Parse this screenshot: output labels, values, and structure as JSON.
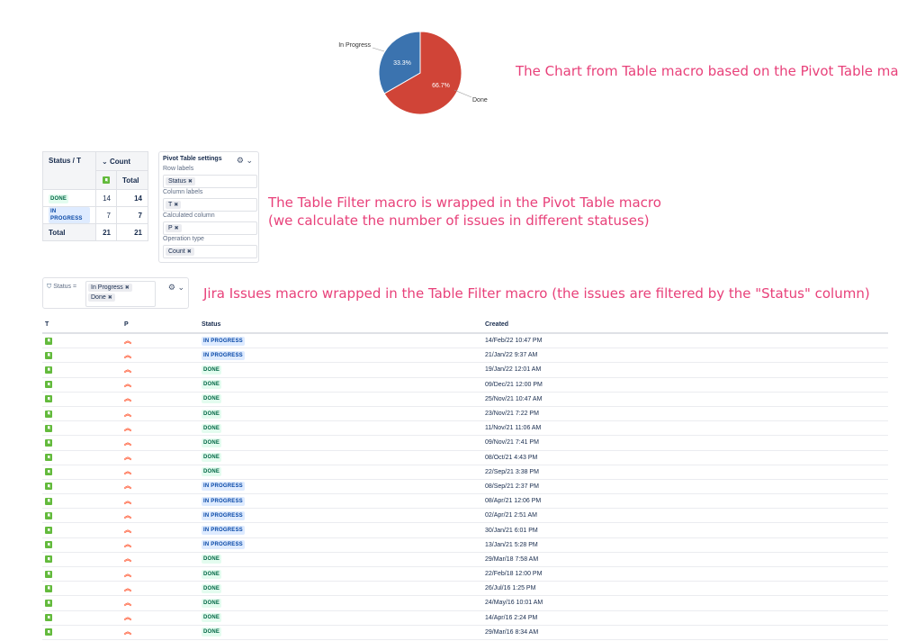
{
  "pie": {
    "chart_data": {
      "type": "pie",
      "slices": [
        {
          "label": "Done",
          "value": 66.7,
          "color": "#d04437"
        },
        {
          "label": "In Progress",
          "value": 33.3,
          "color": "#3b73af"
        }
      ]
    },
    "labels": {
      "in_progress": "In Progress",
      "done": "Done",
      "pct_in_progress": "33.3%",
      "pct_done": "66.7%"
    }
  },
  "annotations": {
    "chart": "The Chart from Table macro based on the Pivot Table macro",
    "pivot_line1": "The Table Filter macro is wrapped in the Pivot Table macro",
    "pivot_line2": "(we calculate the number of issues in different statuses)",
    "jira": "Jira Issues macro wrapped in the Table Filter macro (the issues are filtered by the \"Status\" column)"
  },
  "pivot": {
    "corner": "Status / T",
    "count_header": "Count",
    "total_col": "Total",
    "rows": [
      {
        "status": "DONE",
        "kind": "done",
        "v": "14",
        "total": "14"
      },
      {
        "status": "IN PROGRESS",
        "kind": "prog",
        "v": "7",
        "total": "7"
      }
    ],
    "total_row": {
      "label": "Total",
      "v": "21",
      "total": "21"
    }
  },
  "settings": {
    "title": "Pivot Table settings",
    "row_labels": "Row labels",
    "row_chip": "Status",
    "column_labels": "Column labels",
    "column_chip": "T",
    "calculated": "Calculated column",
    "calculated_chip": "P",
    "operation": "Operation type",
    "operation_chip": "Count",
    "remove_glyph": "✖"
  },
  "filter": {
    "label": "Status =",
    "chips": [
      "In Progress",
      "Done"
    ]
  },
  "issues": {
    "headers": {
      "t": "T",
      "p": "P",
      "status": "Status",
      "created": "Created"
    },
    "rows": [
      {
        "status": "IN PROGRESS",
        "created": "14/Feb/22 10:47 PM"
      },
      {
        "status": "IN PROGRESS",
        "created": "21/Jan/22 9:37 AM"
      },
      {
        "status": "DONE",
        "created": "19/Jan/22 12:01 AM"
      },
      {
        "status": "DONE",
        "created": "09/Dec/21 12:00 PM"
      },
      {
        "status": "DONE",
        "created": "25/Nov/21 10:47 AM"
      },
      {
        "status": "DONE",
        "created": "23/Nov/21 7:22 PM"
      },
      {
        "status": "DONE",
        "created": "11/Nov/21 11:06 AM"
      },
      {
        "status": "DONE",
        "created": "09/Nov/21 7:41 PM"
      },
      {
        "status": "DONE",
        "created": "08/Oct/21 4:43 PM"
      },
      {
        "status": "DONE",
        "created": "22/Sep/21 3:38 PM"
      },
      {
        "status": "IN PROGRESS",
        "created": "08/Sep/21 2:37 PM"
      },
      {
        "status": "IN PROGRESS",
        "created": "08/Apr/21 12:06 PM"
      },
      {
        "status": "IN PROGRESS",
        "created": "02/Apr/21 2:51 AM"
      },
      {
        "status": "IN PROGRESS",
        "created": "30/Jan/21 6:01 PM"
      },
      {
        "status": "IN PROGRESS",
        "created": "13/Jan/21 5:28 PM"
      },
      {
        "status": "DONE",
        "created": "29/Mar/18 7:58 AM"
      },
      {
        "status": "DONE",
        "created": "22/Feb/18 12:00 PM"
      },
      {
        "status": "DONE",
        "created": "26/Jul/16 1:25 PM"
      },
      {
        "status": "DONE",
        "created": "24/May/16 10:01 AM"
      },
      {
        "status": "DONE",
        "created": "14/Apr/16 2:24 PM"
      },
      {
        "status": "DONE",
        "created": "29/Mar/16 8:34 AM"
      }
    ]
  }
}
